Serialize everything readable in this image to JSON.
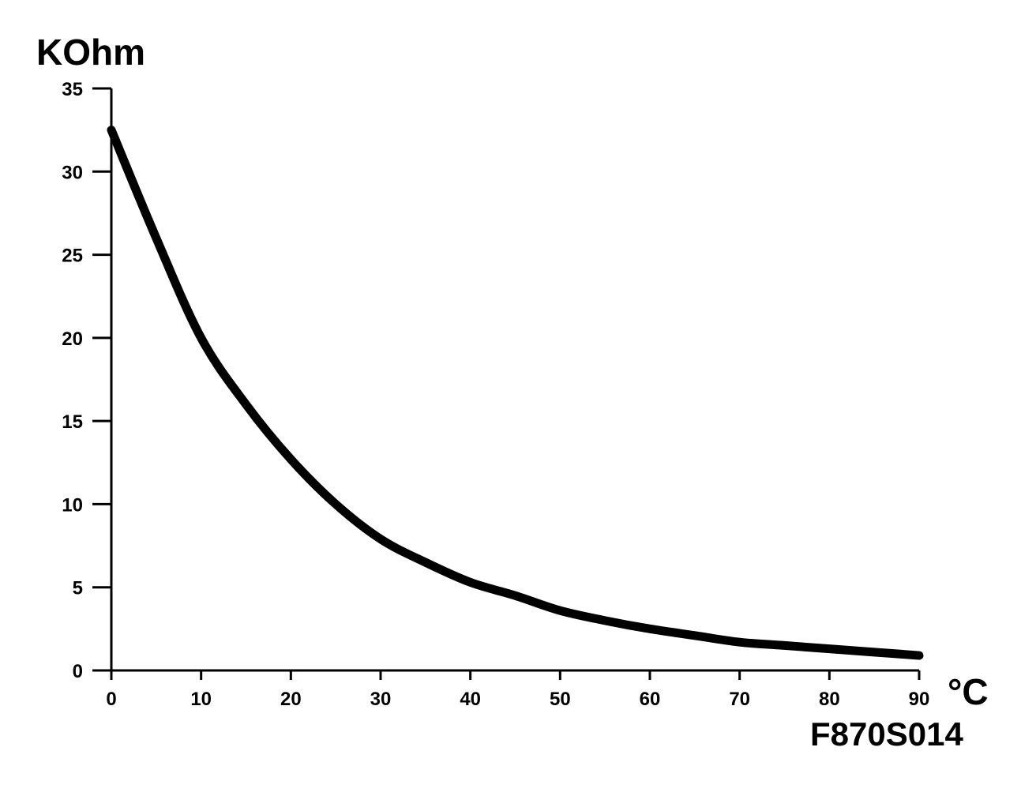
{
  "chart_data": {
    "type": "line",
    "title": "",
    "xlabel": "°C",
    "ylabel": "KOhm",
    "figure_code": "F870S014",
    "xlim": [
      0,
      90
    ],
    "ylim": [
      0,
      35
    ],
    "x_ticks": [
      0,
      10,
      20,
      30,
      40,
      50,
      60,
      70,
      80,
      90
    ],
    "y_ticks": [
      0,
      5,
      10,
      15,
      20,
      25,
      30,
      35
    ],
    "grid": false,
    "legend": "none",
    "line_color": "#000000",
    "series": [
      {
        "x": [
          0,
          5,
          10,
          15,
          20,
          25,
          30,
          35,
          40,
          45,
          50,
          55,
          60,
          65,
          70,
          75,
          80,
          85,
          90
        ],
        "values": [
          32.5,
          26.0,
          20.0,
          16.0,
          12.7,
          10.0,
          7.9,
          6.5,
          5.3,
          4.5,
          3.6,
          3.0,
          2.5,
          2.1,
          1.7,
          1.5,
          1.3,
          1.1,
          0.9
        ]
      }
    ]
  }
}
